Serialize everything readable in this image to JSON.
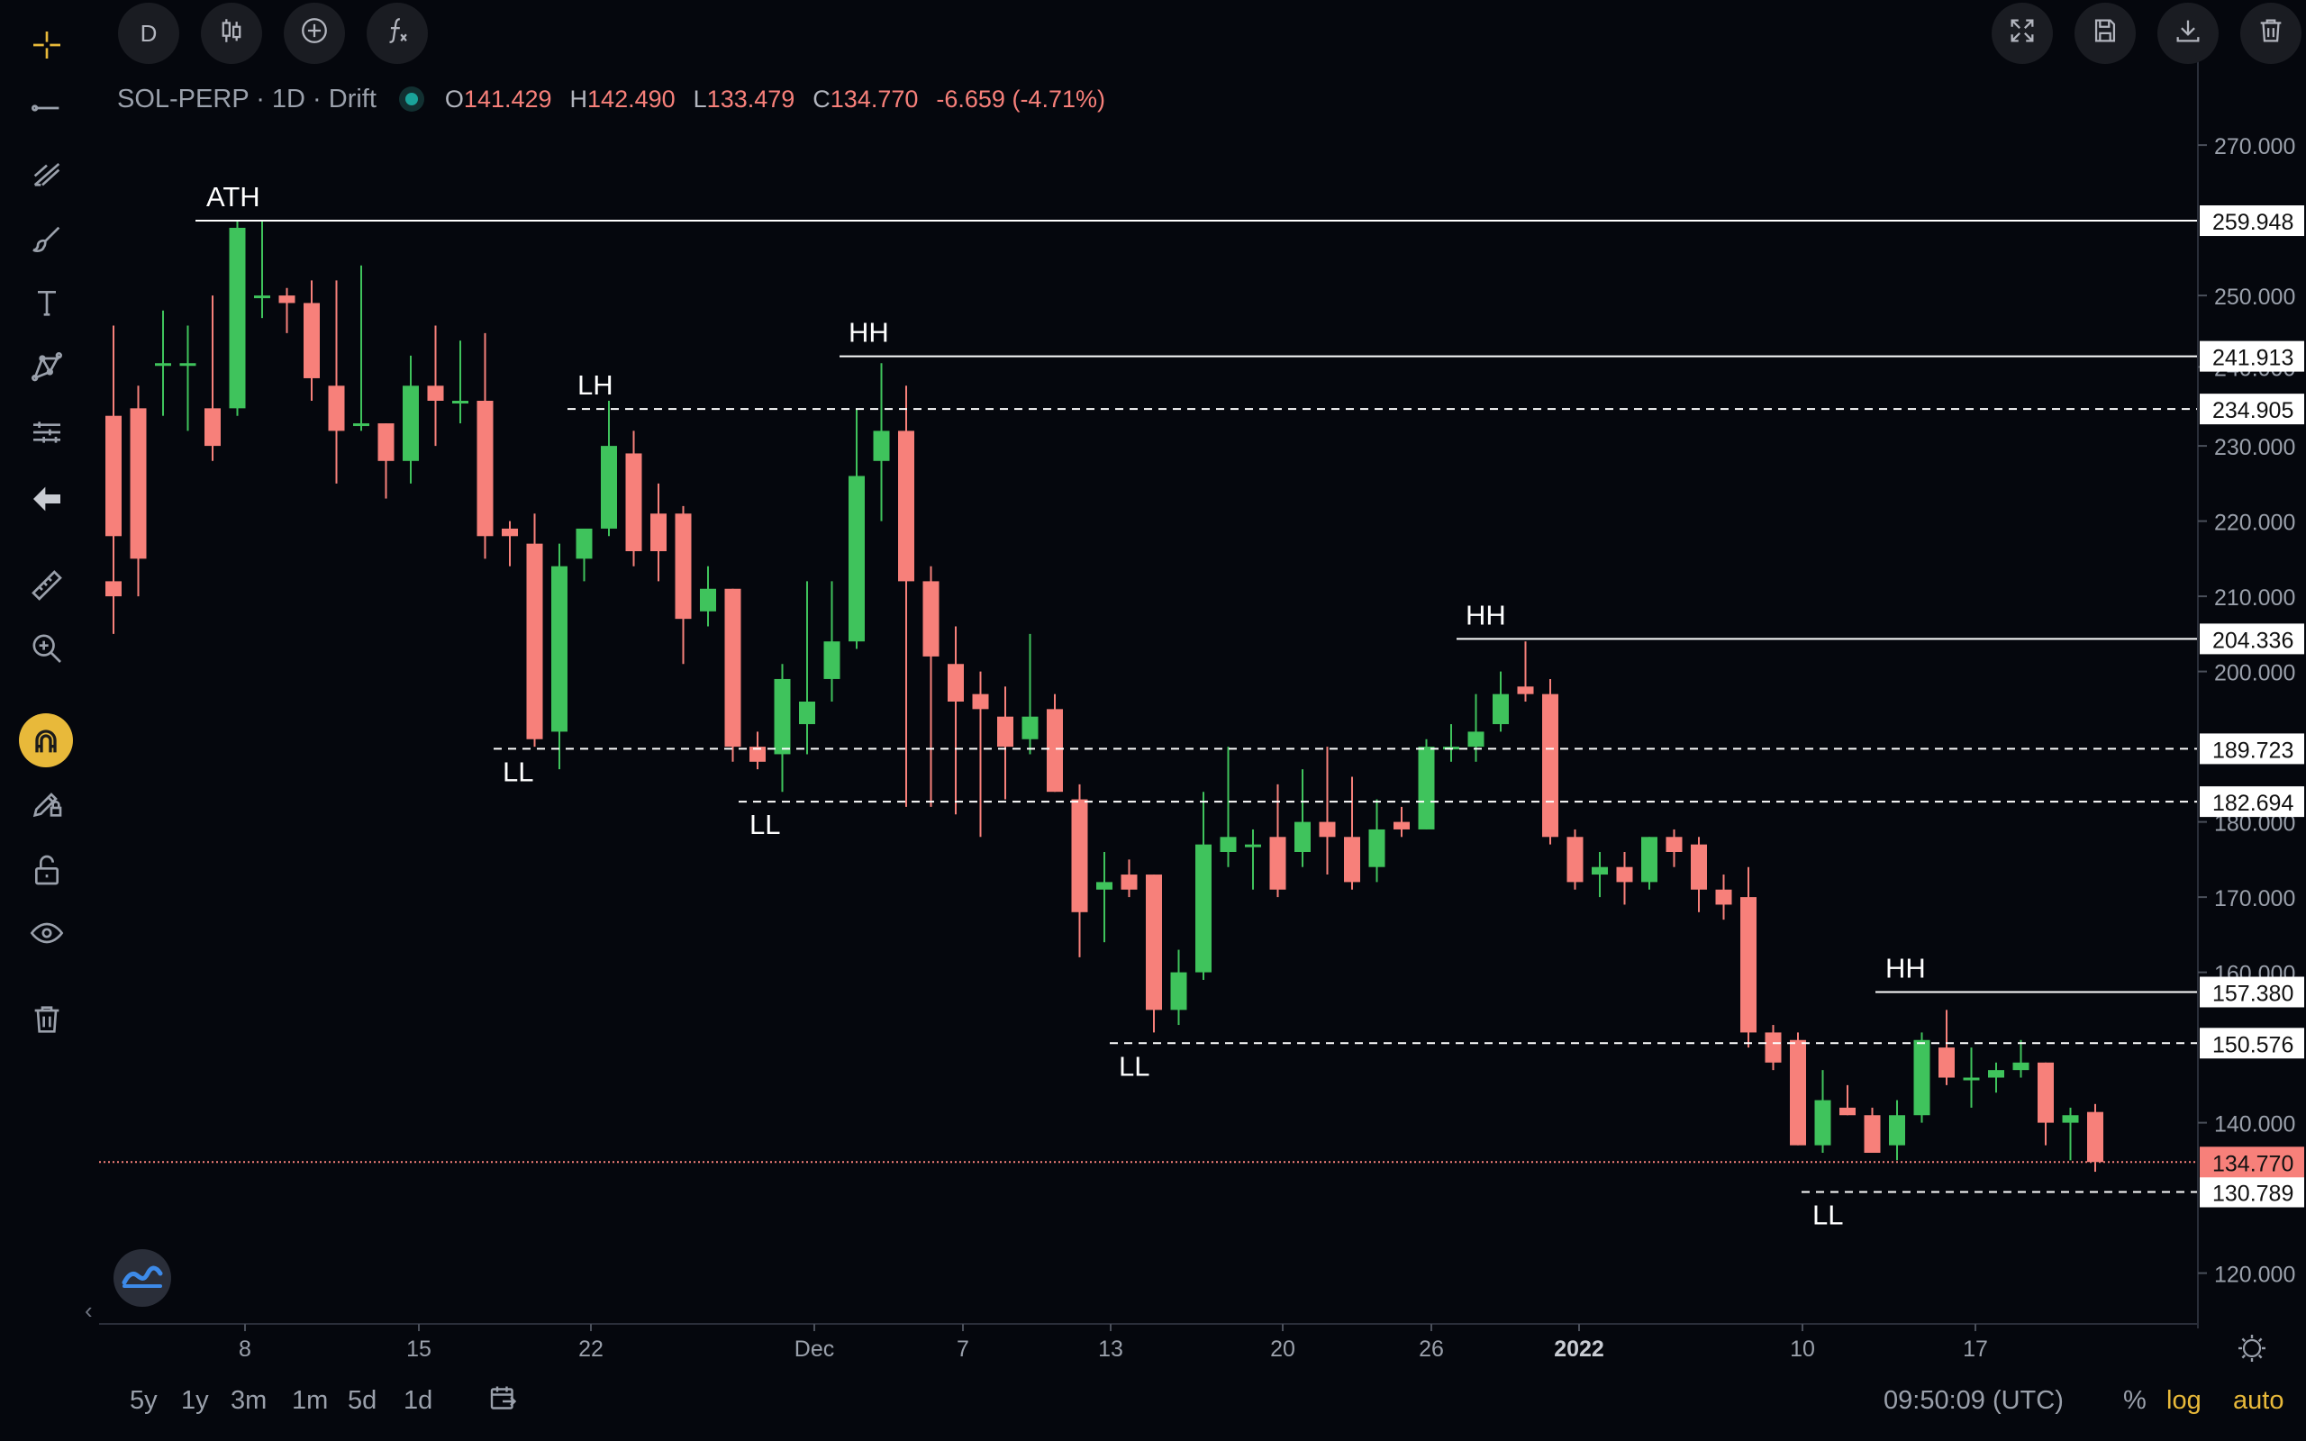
{
  "toolbar_left": [
    {
      "name": "crosshair",
      "icon": "crosshair-icon"
    },
    {
      "name": "trend-line",
      "icon": "trend-line-icon"
    },
    {
      "name": "fib",
      "icon": "pitchfork-icon"
    },
    {
      "name": "brush",
      "icon": "brush-icon"
    },
    {
      "name": "text",
      "icon": "text-icon"
    },
    {
      "name": "patterns",
      "icon": "pattern-icon"
    },
    {
      "name": "forecast",
      "icon": "forecast-icon"
    },
    {
      "name": "back",
      "icon": "arrow-left-icon"
    },
    {
      "name": "measure",
      "icon": "ruler-icon"
    },
    {
      "name": "zoom",
      "icon": "zoom-in-icon"
    },
    {
      "name": "magnet",
      "icon": "magnet-icon"
    },
    {
      "name": "stay-drawing",
      "icon": "pencil-lock-icon"
    },
    {
      "name": "lock",
      "icon": "unlock-icon"
    },
    {
      "name": "visibility",
      "icon": "eye-icon"
    },
    {
      "name": "remove",
      "icon": "trash-icon"
    }
  ],
  "toolbar_top": {
    "interval": "D",
    "right": [
      {
        "name": "fullscreen",
        "icon": "fullscreen-icon"
      },
      {
        "name": "save",
        "icon": "save-icon"
      },
      {
        "name": "download",
        "icon": "download-icon"
      },
      {
        "name": "delete",
        "icon": "trash-icon"
      }
    ]
  },
  "legend": {
    "symbol": "SOL-PERP · 1D · Drift",
    "o_key": "O",
    "o": "141.429",
    "h_key": "H",
    "h": "142.490",
    "l_key": "L",
    "l": "133.479",
    "c_key": "C",
    "c": "134.770",
    "change": "-6.659 (-4.71%)"
  },
  "bottom": {
    "ranges": [
      "5y",
      "1y",
      "3m",
      "1m",
      "5d",
      "1d"
    ],
    "time": "09:50:09 (UTC)",
    "percent": "%",
    "log": "log",
    "auto": "auto"
  },
  "colors": {
    "up": "#3fc35c",
    "down": "#f7807a",
    "bg": "#05070d",
    "last_price": "#f7807a"
  },
  "chart_data": {
    "type": "candlestick",
    "symbol": "SOL-PERP",
    "interval": "1D",
    "x_labels": [
      "8",
      "15",
      "22",
      "Dec",
      "7",
      "13",
      "20",
      "26",
      "2022",
      "10",
      "17"
    ],
    "y_ticks": [
      "270.000",
      "250.000",
      "240.000",
      "230.000",
      "220.000",
      "210.000",
      "200.000",
      "180.000",
      "170.000",
      "160.000",
      "140.000",
      "120.000"
    ],
    "ylim": [
      116,
      276
    ],
    "candles": [
      [
        0,
        234,
        246,
        218,
        212
      ],
      [
        0,
        212,
        235,
        210,
        205
      ],
      [
        1,
        235,
        238,
        215,
        210
      ],
      [
        2,
        241,
        248,
        241,
        234
      ],
      [
        3,
        241,
        246,
        241,
        232
      ],
      [
        4,
        235,
        250,
        230,
        228
      ],
      [
        5,
        235,
        260,
        259,
        234
      ],
      [
        6,
        250,
        260,
        250,
        247
      ],
      [
        7,
        250,
        251,
        249,
        245
      ],
      [
        8,
        249,
        252,
        239,
        236
      ],
      [
        9,
        238,
        252,
        232,
        225
      ],
      [
        10,
        233,
        254,
        233,
        232
      ],
      [
        11,
        233,
        233,
        228,
        223
      ],
      [
        12,
        228,
        242,
        238,
        225
      ],
      [
        13,
        238,
        246,
        236,
        230
      ],
      [
        14,
        236,
        244,
        236,
        233
      ],
      [
        15,
        236,
        245,
        218,
        215
      ],
      [
        16,
        219,
        220,
        218,
        214
      ],
      [
        17,
        217,
        221,
        191,
        190
      ],
      [
        18,
        192,
        217,
        214,
        187
      ],
      [
        19,
        215,
        218,
        219,
        212
      ],
      [
        20,
        219,
        236,
        230,
        218
      ],
      [
        21,
        229,
        232,
        216,
        214
      ],
      [
        22,
        221,
        225,
        216,
        212
      ],
      [
        23,
        221,
        222,
        207,
        201
      ],
      [
        24,
        208,
        214,
        211,
        206
      ],
      [
        25,
        211,
        211,
        190,
        188
      ],
      [
        26,
        190,
        192,
        188,
        187
      ],
      [
        27,
        189,
        201,
        199,
        184
      ],
      [
        28,
        193,
        212,
        196,
        189
      ],
      [
        29,
        199,
        212,
        204,
        196
      ],
      [
        30,
        204,
        235,
        226,
        203
      ],
      [
        31,
        228,
        241,
        232,
        220
      ],
      [
        32,
        232,
        238,
        212,
        182
      ],
      [
        33,
        212,
        214,
        202,
        182
      ],
      [
        34,
        201,
        206,
        196,
        181
      ],
      [
        35,
        197,
        200,
        195,
        178
      ],
      [
        36,
        194,
        198,
        190,
        183
      ],
      [
        37,
        191,
        205,
        194,
        189
      ],
      [
        38,
        195,
        197,
        184,
        184
      ],
      [
        39,
        183,
        185,
        168,
        162
      ],
      [
        40,
        171,
        176,
        172,
        164
      ],
      [
        41,
        173,
        175,
        171,
        170
      ],
      [
        42,
        173,
        173,
        155,
        152
      ],
      [
        43,
        155,
        163,
        160,
        153
      ],
      [
        44,
        160,
        184,
        177,
        159
      ],
      [
        45,
        176,
        190,
        178,
        174
      ],
      [
        46,
        177,
        179,
        177,
        171
      ],
      [
        47,
        178,
        185,
        171,
        170
      ],
      [
        48,
        176,
        187,
        180,
        174
      ],
      [
        49,
        180,
        190,
        178,
        173
      ],
      [
        50,
        178,
        186,
        172,
        171
      ],
      [
        51,
        174,
        183,
        179,
        172
      ],
      [
        52,
        180,
        182,
        179,
        178
      ],
      [
        53,
        179,
        191,
        190,
        179
      ],
      [
        54,
        190,
        193,
        190,
        188
      ],
      [
        55,
        190,
        197,
        192,
        188
      ],
      [
        56,
        193,
        200,
        197,
        192
      ],
      [
        57,
        198,
        204,
        197,
        196
      ],
      [
        58,
        197,
        199,
        178,
        177
      ],
      [
        59,
        178,
        179,
        172,
        171
      ],
      [
        60,
        173,
        176,
        174,
        170
      ],
      [
        61,
        174,
        176,
        172,
        169
      ],
      [
        62,
        172,
        178,
        178,
        171
      ],
      [
        63,
        178,
        179,
        176,
        174
      ],
      [
        64,
        177,
        178,
        171,
        168
      ],
      [
        65,
        171,
        173,
        169,
        167
      ],
      [
        66,
        170,
        174,
        152,
        150
      ],
      [
        67,
        152,
        153,
        148,
        147
      ],
      [
        68,
        151,
        152,
        137,
        137
      ],
      [
        69,
        137,
        147,
        143,
        136
      ],
      [
        70,
        142,
        145,
        141,
        141
      ],
      [
        71,
        141,
        142,
        136,
        136
      ],
      [
        72,
        137,
        143,
        141,
        135
      ],
      [
        73,
        141,
        152,
        151,
        140
      ],
      [
        74,
        150,
        155,
        146,
        145
      ],
      [
        75,
        146,
        150,
        146,
        142
      ],
      [
        76,
        146,
        148,
        147,
        144
      ],
      [
        77,
        147,
        151,
        148,
        146
      ],
      [
        78,
        148,
        148,
        140,
        137
      ],
      [
        79,
        140,
        142,
        141,
        135
      ],
      [
        80,
        141.429,
        142.49,
        134.77,
        133.479
      ]
    ],
    "annotations": [
      {
        "label": "ATH",
        "price": 259.948,
        "style": "solid"
      },
      {
        "label": "HH",
        "price": 241.913,
        "style": "solid"
      },
      {
        "label": "LH",
        "price": 234.905,
        "style": "dashed"
      },
      {
        "label": "HH",
        "price": 204.336,
        "style": "solid"
      },
      {
        "label": "LL",
        "price": 189.723,
        "style": "dashed"
      },
      {
        "label": "LL",
        "price": 182.694,
        "style": "dashed"
      },
      {
        "label": "HH",
        "price": 157.38,
        "style": "solid"
      },
      {
        "label": "LL",
        "price": 150.576,
        "style": "dashed"
      },
      {
        "label": "LL",
        "price": 130.789,
        "style": "dashed"
      }
    ],
    "last_price": "134.770"
  }
}
